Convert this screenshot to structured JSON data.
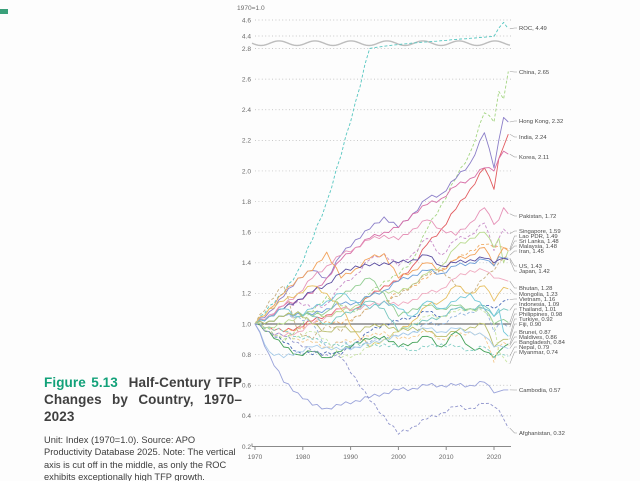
{
  "page": {
    "corner_mark_color": "#3aa07a",
    "background": "#fdfdfd"
  },
  "caption": {
    "figure_label": "Figure 5.13",
    "figure_label_color": "#12a179",
    "title": "Half-Century TFP Changes by Country, 1970–2023",
    "note": "Unit: Index (1970=1.0). Source: APO Productivity Database 2025. Note: The vertical axis is cut off in the middle, as only the ROC exhibits exceptionally high TFP growth."
  },
  "chart_data": {
    "type": "line",
    "title": "Half-Century TFP Changes by Country, 1970–2023",
    "unit_label": "1970=1.0",
    "grid": "dotted",
    "legend_position": "right-labels",
    "x_axis": {
      "ticks": [
        1970,
        1980,
        1990,
        2000,
        2010,
        2020
      ],
      "range": [
        1970,
        2023
      ]
    },
    "y_axis": {
      "min": 0.2,
      "max": 4.6,
      "ticks_lower": [
        0.2,
        0.4,
        0.6,
        0.8,
        1.0,
        1.2,
        1.4,
        1.6,
        1.8,
        2.0,
        2.2,
        2.4,
        2.6,
        2.8
      ],
      "ticks_upper": [
        4.4,
        4.6
      ],
      "axis_break_between": [
        2.8,
        4.4
      ],
      "reference_line": 1.0
    },
    "years": [
      1970,
      1973,
      1976,
      1979,
      1982,
      1985,
      1988,
      1991,
      1994,
      1997,
      2000,
      2003,
      2006,
      2009,
      2012,
      2015,
      2018,
      2020,
      2021,
      2022,
      2023
    ],
    "series": [
      {
        "name": "ROC",
        "final": "4.49",
        "color": "#56c6c0",
        "dash": true,
        "label_y": 28,
        "values": [
          1.0,
          1.12,
          1.2,
          1.35,
          1.55,
          1.8,
          2.1,
          2.45,
          2.8,
          3.1,
          3.3,
          3.5,
          3.65,
          3.8,
          3.95,
          4.1,
          4.25,
          4.35,
          4.5,
          4.57,
          4.49
        ]
      },
      {
        "name": "China",
        "final": "2.65",
        "color": "#a4d583",
        "dash": true,
        "label_y": 72,
        "values": [
          1.0,
          0.97,
          0.88,
          0.98,
          1.08,
          1.18,
          1.12,
          1.08,
          1.2,
          1.28,
          1.32,
          1.42,
          1.62,
          1.78,
          1.95,
          2.12,
          2.38,
          2.32,
          2.52,
          2.47,
          2.65
        ]
      },
      {
        "name": "Hong Kong",
        "final": "2.32",
        "color": "#8b7ec8",
        "dash": false,
        "label_y": 121,
        "values": [
          1.0,
          1.08,
          1.18,
          1.3,
          1.35,
          1.3,
          1.45,
          1.55,
          1.62,
          1.7,
          1.63,
          1.72,
          1.82,
          1.85,
          1.95,
          2.05,
          2.25,
          2.02,
          2.2,
          2.35,
          2.32
        ]
      },
      {
        "name": "India",
        "final": "2.24",
        "color": "#e25b5f",
        "dash": false,
        "label_y": 137,
        "values": [
          1.0,
          0.98,
          0.95,
          0.98,
          1.02,
          1.06,
          1.1,
          1.1,
          1.18,
          1.25,
          1.28,
          1.38,
          1.52,
          1.62,
          1.75,
          1.88,
          2.02,
          1.88,
          2.08,
          2.16,
          2.24
        ]
      },
      {
        "name": "Korea",
        "final": "2.11",
        "color": "#d76fa7",
        "dash": false,
        "label_y": 157,
        "values": [
          1.0,
          1.05,
          1.12,
          1.16,
          1.2,
          1.3,
          1.42,
          1.5,
          1.56,
          1.6,
          1.63,
          1.72,
          1.78,
          1.82,
          1.9,
          1.95,
          2.02,
          2.0,
          2.08,
          2.13,
          2.11
        ]
      },
      {
        "name": "Pakistan",
        "final": "1.72",
        "color": "#e693b8",
        "dash": false,
        "label_y": 216,
        "values": [
          1.0,
          1.06,
          1.12,
          1.2,
          1.3,
          1.38,
          1.45,
          1.5,
          1.55,
          1.58,
          1.55,
          1.62,
          1.68,
          1.62,
          1.58,
          1.66,
          1.76,
          1.65,
          1.68,
          1.76,
          1.72
        ]
      },
      {
        "name": "Singapore",
        "final": "1.59",
        "color": "#c98fc9",
        "dash": true,
        "label_y": 231,
        "values": [
          1.0,
          1.05,
          1.1,
          1.15,
          1.1,
          1.13,
          1.25,
          1.32,
          1.42,
          1.46,
          1.38,
          1.46,
          1.56,
          1.45,
          1.55,
          1.58,
          1.66,
          1.48,
          1.56,
          1.62,
          1.59
        ]
      },
      {
        "name": "Lao PDR",
        "final": "1.49",
        "color": "#f0ad66",
        "dash": true,
        "label_y": 236,
        "values": [
          1.0,
          0.98,
          0.95,
          0.97,
          1.0,
          1.02,
          1.0,
          1.05,
          1.1,
          1.15,
          1.2,
          1.25,
          1.3,
          1.36,
          1.42,
          1.48,
          1.52,
          1.5,
          1.51,
          1.5,
          1.49
        ]
      },
      {
        "name": "Sri Lanka",
        "final": "1.48",
        "color": "#b8da8e",
        "dash": false,
        "label_y": 241,
        "values": [
          1.0,
          0.98,
          1.0,
          1.05,
          1.08,
          1.05,
          1.08,
          1.12,
          1.18,
          1.22,
          1.2,
          1.26,
          1.33,
          1.38,
          1.5,
          1.56,
          1.6,
          1.5,
          1.56,
          1.4,
          1.48
        ]
      },
      {
        "name": "Malaysia",
        "final": "1.48",
        "color": "#f2a25b",
        "dash": false,
        "label_y": 246,
        "values": [
          1.0,
          1.1,
          1.2,
          1.3,
          1.35,
          1.47,
          1.3,
          1.36,
          1.43,
          1.46,
          1.3,
          1.35,
          1.4,
          1.35,
          1.42,
          1.45,
          1.5,
          1.38,
          1.45,
          1.5,
          1.48
        ]
      },
      {
        "name": "Iran",
        "final": "1.45",
        "color": "#c8b083",
        "dash": true,
        "label_y": 251,
        "values": [
          1.0,
          1.15,
          1.25,
          0.95,
          0.9,
          1.0,
          0.95,
          1.05,
          1.1,
          1.15,
          1.18,
          1.26,
          1.32,
          1.36,
          1.25,
          1.2,
          1.3,
          1.35,
          1.4,
          1.43,
          1.45
        ]
      },
      {
        "name": "US",
        "final": "1.43",
        "color": "#6d9ed9",
        "dash": false,
        "label_y": 266,
        "values": [
          1.0,
          1.02,
          1.05,
          1.07,
          1.06,
          1.1,
          1.13,
          1.14,
          1.18,
          1.22,
          1.28,
          1.32,
          1.35,
          1.33,
          1.38,
          1.4,
          1.42,
          1.38,
          1.44,
          1.43,
          1.43
        ]
      },
      {
        "name": "Japan",
        "final": "1.42",
        "color": "#5b4ea0",
        "dash": false,
        "label_y": 271,
        "values": [
          1.0,
          1.05,
          1.1,
          1.16,
          1.21,
          1.26,
          1.33,
          1.38,
          1.38,
          1.4,
          1.4,
          1.42,
          1.45,
          1.38,
          1.4,
          1.42,
          1.43,
          1.4,
          1.42,
          1.43,
          1.42
        ]
      },
      {
        "name": "Bhutan",
        "final": "1.28",
        "color": "#efa9bf",
        "dash": false,
        "label_y": 288,
        "values": [
          1.0,
          0.95,
          0.92,
          0.95,
          1.0,
          1.05,
          1.1,
          1.1,
          1.12,
          1.15,
          1.12,
          1.16,
          1.2,
          1.23,
          1.3,
          1.35,
          1.35,
          1.3,
          1.3,
          1.29,
          1.28
        ]
      },
      {
        "name": "Mongolia",
        "final": "1.23",
        "color": "#e7c063",
        "dash": false,
        "label_y": 294,
        "values": [
          1.0,
          1.1,
          1.15,
          1.2,
          1.25,
          1.2,
          1.1,
          0.95,
          0.85,
          0.9,
          0.95,
          1.02,
          1.12,
          1.15,
          1.25,
          1.2,
          1.25,
          1.15,
          1.2,
          1.24,
          1.23
        ]
      },
      {
        "name": "Vietnam",
        "final": "1.16",
        "color": "#4c6cb8",
        "dash": true,
        "label_y": 299,
        "values": [
          1.0,
          0.95,
          0.88,
          0.82,
          0.8,
          0.82,
          0.8,
          0.88,
          0.95,
          1.0,
          1.02,
          1.05,
          1.08,
          1.05,
          1.1,
          1.1,
          1.12,
          1.1,
          1.12,
          1.15,
          1.16
        ]
      },
      {
        "name": "Indonesia",
        "final": "1.09",
        "color": "#79c7bf",
        "dash": false,
        "label_y": 304,
        "values": [
          1.0,
          1.02,
          1.05,
          1.08,
          1.05,
          1.0,
          1.05,
          1.1,
          1.15,
          1.1,
          0.95,
          1.0,
          1.02,
          1.05,
          1.1,
          1.1,
          1.12,
          1.05,
          1.08,
          1.1,
          1.09
        ]
      },
      {
        "name": "Thailand",
        "final": "1.01",
        "color": "#92cd92",
        "dash": false,
        "label_y": 309,
        "values": [
          1.0,
          1.02,
          1.05,
          1.08,
          1.05,
          1.08,
          1.18,
          1.25,
          1.3,
          1.2,
          1.05,
          1.1,
          1.12,
          1.1,
          1.12,
          1.1,
          1.1,
          1.0,
          1.02,
          1.03,
          1.01
        ]
      },
      {
        "name": "Philippines",
        "final": "0.98",
        "color": "#93b5de",
        "dash": true,
        "label_y": 314,
        "values": [
          1.0,
          1.02,
          1.05,
          1.05,
          1.0,
          0.85,
          0.88,
          0.85,
          0.88,
          0.92,
          0.92,
          0.95,
          1.0,
          1.0,
          1.05,
          1.08,
          1.1,
          0.95,
          1.0,
          1.0,
          0.98
        ]
      },
      {
        "name": "Turkiye",
        "final": "0.92",
        "color": "#72c8d9",
        "dash": false,
        "label_y": 319,
        "values": [
          1.0,
          1.05,
          1.1,
          1.05,
          1.1,
          1.15,
          1.2,
          1.15,
          1.1,
          1.15,
          1.1,
          1.05,
          1.15,
          1.1,
          1.15,
          1.2,
          1.1,
          1.05,
          1.1,
          0.95,
          0.92
        ]
      },
      {
        "name": "Fiji",
        "final": "0.90",
        "color": "#b9bd6e",
        "dash": false,
        "label_y": 324,
        "values": [
          1.0,
          1.02,
          1.05,
          1.08,
          1.0,
          0.95,
          0.98,
          0.95,
          0.98,
          1.0,
          0.95,
          0.98,
          0.95,
          0.92,
          0.95,
          0.98,
          1.0,
          0.85,
          0.88,
          0.9,
          0.9
        ]
      },
      {
        "name": "Brunei",
        "final": "0.87",
        "color": "#44a158",
        "dash": false,
        "label_y": 332,
        "values": [
          1.0,
          0.95,
          0.85,
          0.8,
          0.82,
          0.78,
          0.82,
          0.88,
          0.9,
          0.92,
          0.85,
          0.88,
          0.92,
          0.85,
          0.95,
          0.85,
          0.82,
          0.78,
          0.82,
          0.85,
          0.87
        ]
      },
      {
        "name": "Maldives",
        "final": "0.86",
        "color": "#f3c98e",
        "dash": true,
        "label_y": 337,
        "values": [
          1.0,
          0.98,
          0.95,
          0.9,
          0.88,
          0.85,
          0.88,
          0.9,
          0.92,
          0.95,
          0.9,
          0.92,
          0.95,
          0.9,
          0.92,
          0.95,
          0.92,
          0.75,
          0.85,
          0.88,
          0.86
        ]
      },
      {
        "name": "Bangladesh",
        "final": "0.84",
        "color": "#a9cdea",
        "dash": false,
        "label_y": 342,
        "values": [
          1.0,
          0.82,
          0.78,
          0.82,
          0.85,
          0.85,
          0.83,
          0.85,
          0.87,
          0.9,
          0.92,
          0.95,
          0.97,
          0.95,
          0.97,
          0.95,
          0.92,
          0.85,
          0.86,
          0.85,
          0.84
        ]
      },
      {
        "name": "Nepal",
        "final": "0.79",
        "color": "#83cec5",
        "dash": true,
        "label_y": 347,
        "values": [
          1.0,
          0.98,
          0.95,
          0.92,
          0.9,
          0.88,
          0.85,
          0.88,
          0.85,
          0.87,
          0.85,
          0.83,
          0.85,
          0.87,
          0.85,
          0.83,
          0.85,
          0.78,
          0.8,
          0.8,
          0.79
        ]
      },
      {
        "name": "Myanmar",
        "final": "0.74",
        "color": "#cbe6a7",
        "dash": true,
        "label_y": 352,
        "values": [
          1.0,
          0.95,
          0.9,
          0.92,
          0.95,
          0.9,
          0.78,
          0.8,
          0.85,
          0.9,
          0.95,
          1.0,
          1.05,
          1.05,
          1.08,
          1.1,
          1.08,
          1.0,
          0.82,
          0.78,
          0.74
        ]
      },
      {
        "name": "Cambodia",
        "final": "0.57",
        "color": "#9aa3da",
        "dash": false,
        "label_y": 390,
        "values": [
          1.0,
          0.8,
          0.62,
          0.55,
          0.47,
          0.45,
          0.47,
          0.5,
          0.52,
          0.55,
          0.57,
          0.58,
          0.6,
          0.6,
          0.6,
          0.6,
          0.62,
          0.55,
          0.56,
          0.57,
          0.57
        ]
      },
      {
        "name": "Afghanistan",
        "final": "0.32",
        "color": "#9196cd",
        "dash": true,
        "label_y": 433,
        "values": [
          1.0,
          0.95,
          0.92,
          0.88,
          0.82,
          0.8,
          0.78,
          0.65,
          0.5,
          0.4,
          0.28,
          0.33,
          0.38,
          0.42,
          0.46,
          0.45,
          0.48,
          0.46,
          0.44,
          0.38,
          0.32
        ]
      }
    ]
  }
}
